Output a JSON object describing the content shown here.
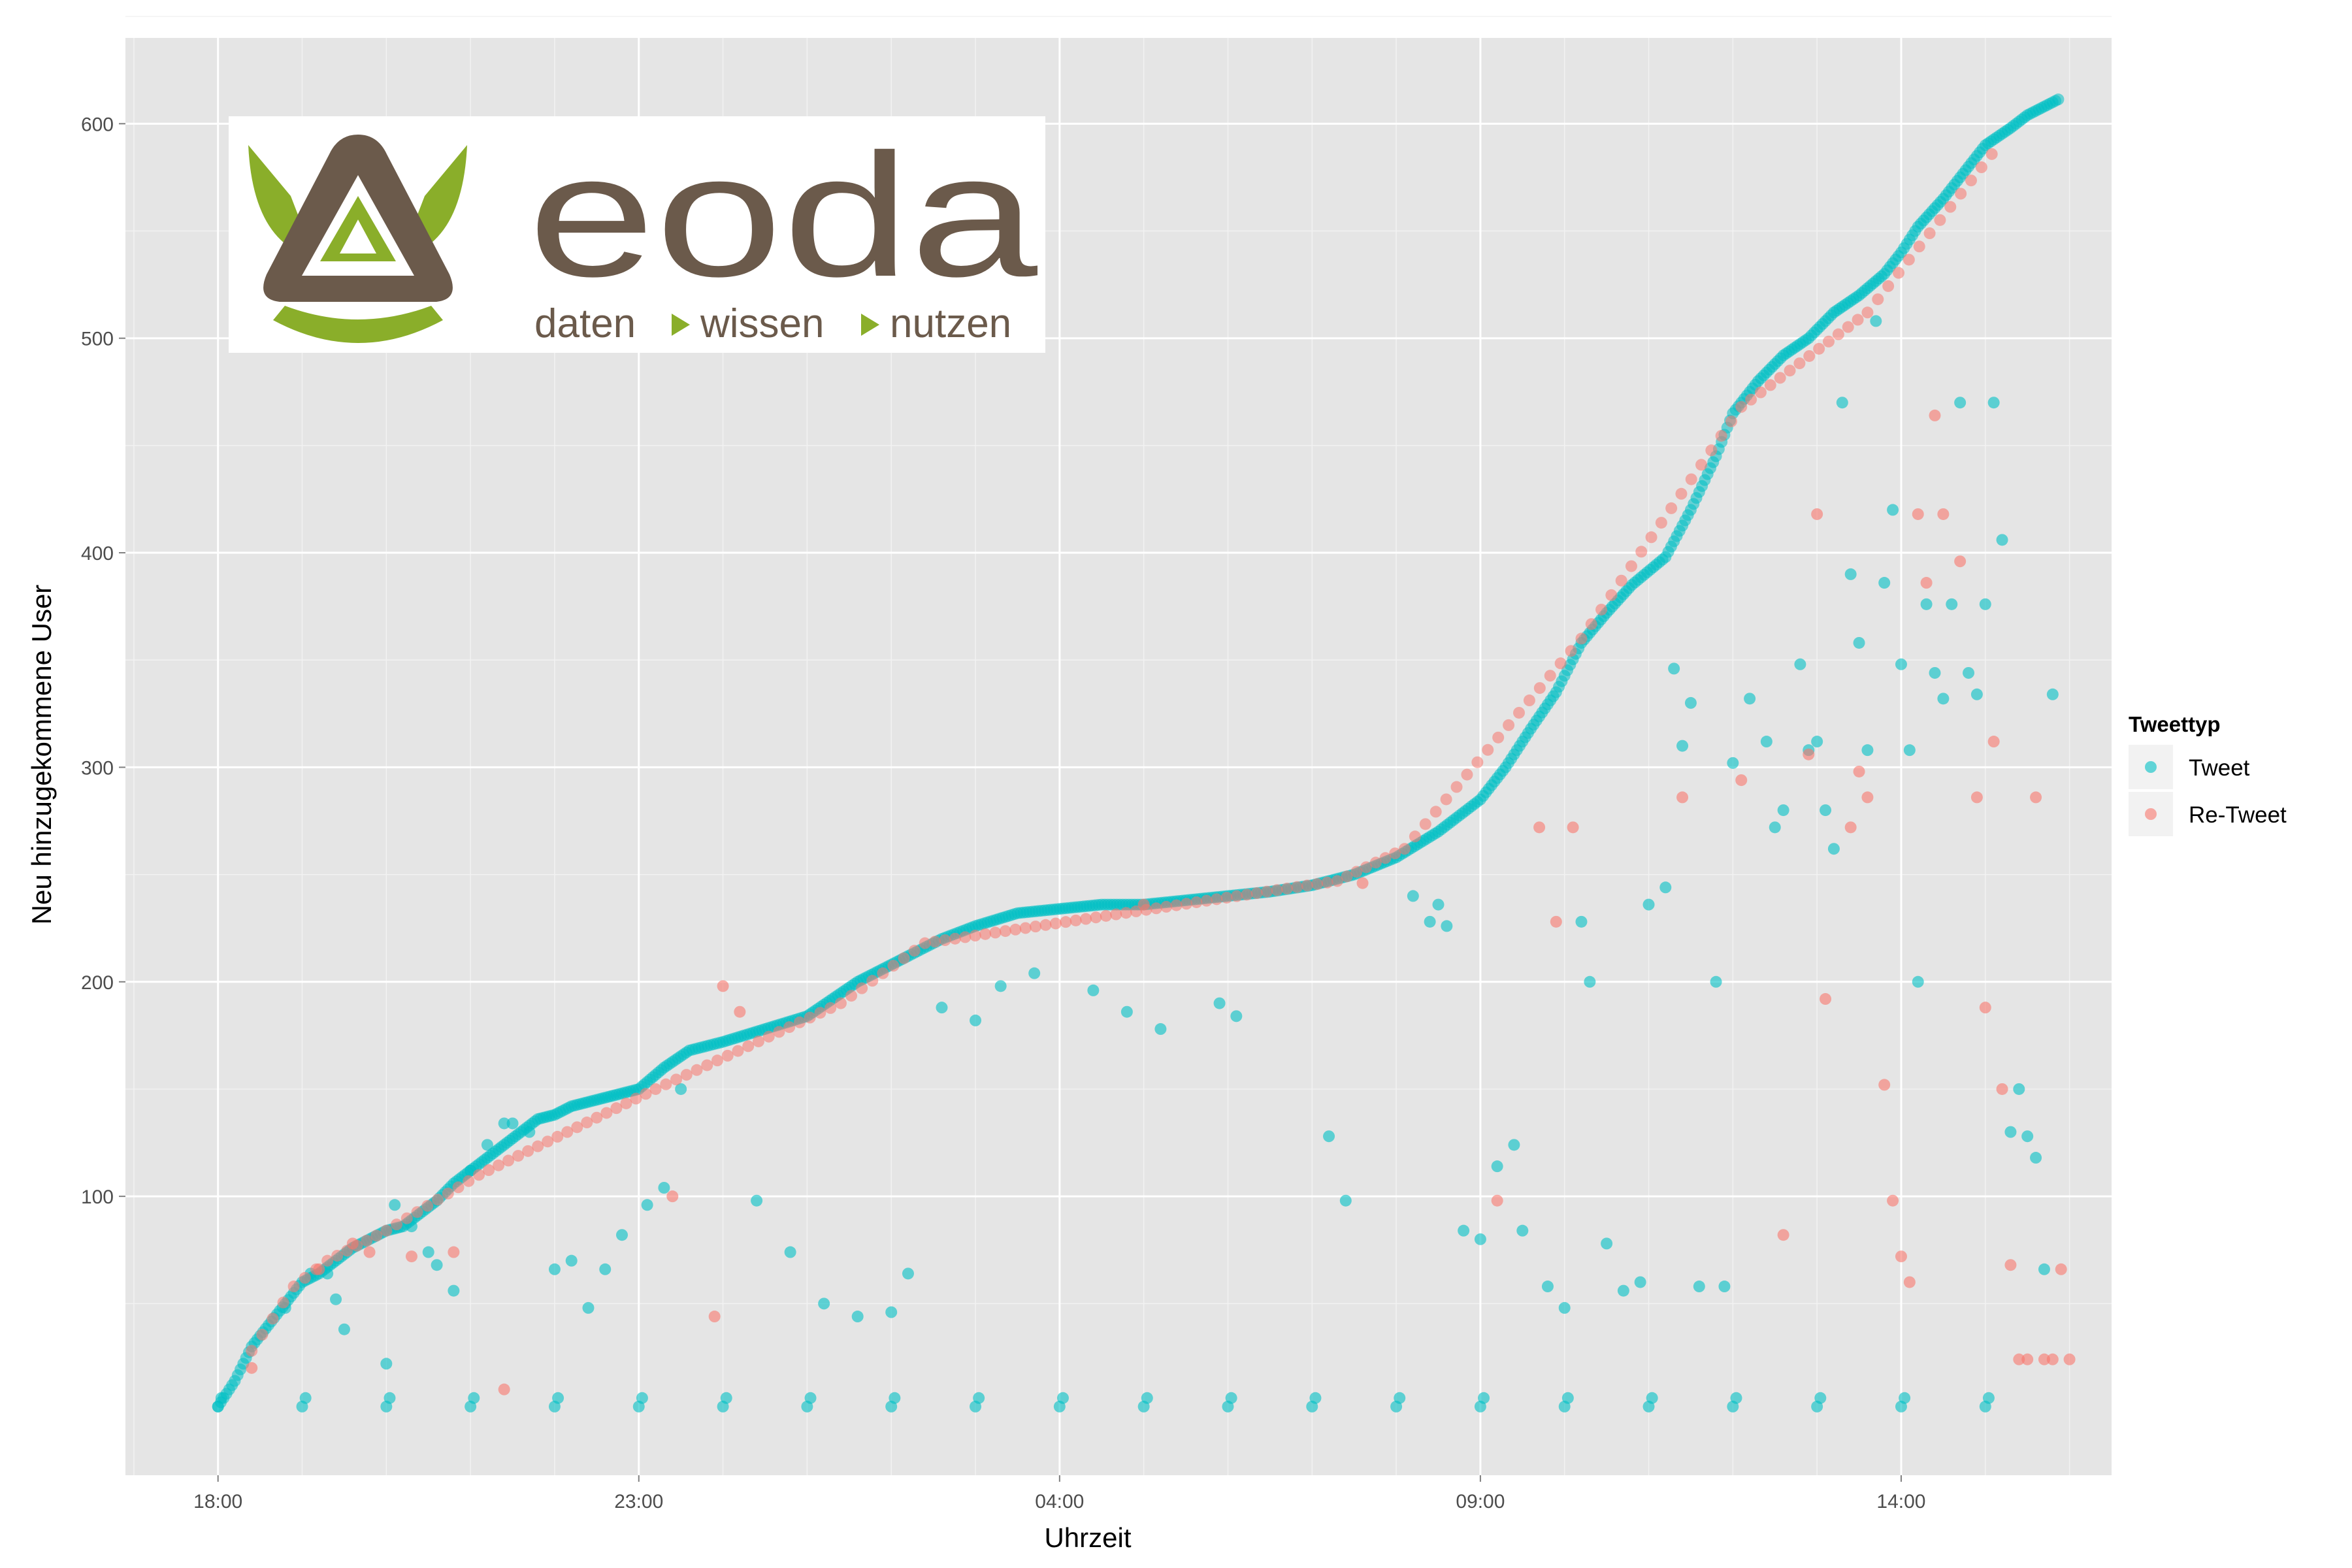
{
  "logo": {
    "name": "eoda",
    "tagline_words": [
      "daten",
      "wissen",
      "nutzen"
    ],
    "colors": {
      "brown": "#6b5a4b",
      "green": "#8aae2a"
    }
  },
  "chart_data": {
    "type": "scatter",
    "xlabel": "Uhrzeit",
    "ylabel": "Neu hinzugekommene User",
    "x_unit": "hours since 18:00",
    "xlim": [
      -1.1,
      22.5
    ],
    "ylim": [
      -30,
      640
    ],
    "x_ticks": [
      {
        "value": 0,
        "label": "18:00"
      },
      {
        "value": 5,
        "label": "23:00"
      },
      {
        "value": 10,
        "label": "04:00"
      },
      {
        "value": 15,
        "label": "09:00"
      },
      {
        "value": 20,
        "label": "14:00"
      }
    ],
    "y_ticks": [
      100,
      200,
      300,
      400,
      500,
      600
    ],
    "grid": true,
    "legend": {
      "title": "Tweettyp",
      "position": "right"
    },
    "colors": {
      "Tweet": "#00BFC4",
      "Re-Tweet": "#F8766D"
    },
    "background": "#e5e5e5",
    "series": [
      {
        "name": "Tweet",
        "curve": [
          [
            0.0,
            2
          ],
          [
            0.2,
            14
          ],
          [
            0.4,
            30
          ],
          [
            0.6,
            40
          ],
          [
            0.8,
            50
          ],
          [
            1.0,
            60
          ],
          [
            1.2,
            64
          ],
          [
            1.4,
            70
          ],
          [
            1.6,
            76
          ],
          [
            1.8,
            80
          ],
          [
            2.0,
            84
          ],
          [
            2.2,
            86
          ],
          [
            2.4,
            92
          ],
          [
            2.6,
            98
          ],
          [
            2.8,
            106
          ],
          [
            3.0,
            112
          ],
          [
            3.2,
            118
          ],
          [
            3.4,
            124
          ],
          [
            3.6,
            130
          ],
          [
            3.8,
            136
          ],
          [
            4.0,
            138
          ],
          [
            4.2,
            142
          ],
          [
            4.5,
            145
          ],
          [
            4.8,
            148
          ],
          [
            5.0,
            150
          ],
          [
            5.3,
            160
          ],
          [
            5.6,
            168
          ],
          [
            6.0,
            172
          ],
          [
            6.5,
            178
          ],
          [
            7.0,
            184
          ],
          [
            7.3,
            192
          ],
          [
            7.6,
            200
          ],
          [
            7.9,
            206
          ],
          [
            8.2,
            212
          ],
          [
            8.6,
            220
          ],
          [
            9.0,
            226
          ],
          [
            9.5,
            232
          ],
          [
            10.0,
            234
          ],
          [
            10.5,
            236
          ],
          [
            11.0,
            236
          ],
          [
            11.5,
            238
          ],
          [
            12.0,
            240
          ],
          [
            12.5,
            242
          ],
          [
            13.0,
            245
          ],
          [
            13.5,
            250
          ],
          [
            14.0,
            258
          ],
          [
            14.5,
            270
          ],
          [
            15.0,
            285
          ],
          [
            15.3,
            300
          ],
          [
            15.6,
            318
          ],
          [
            15.9,
            335
          ],
          [
            16.2,
            358
          ],
          [
            16.5,
            372
          ],
          [
            16.8,
            385
          ],
          [
            17.2,
            398
          ],
          [
            17.5,
            420
          ],
          [
            17.8,
            445
          ],
          [
            18.0,
            465
          ],
          [
            18.3,
            480
          ],
          [
            18.6,
            492
          ],
          [
            18.9,
            500
          ],
          [
            19.2,
            512
          ],
          [
            19.5,
            520
          ],
          [
            19.8,
            530
          ],
          [
            20.0,
            540
          ],
          [
            20.2,
            552
          ],
          [
            20.5,
            565
          ],
          [
            20.8,
            580
          ],
          [
            21.0,
            590
          ],
          [
            21.3,
            598
          ],
          [
            21.5,
            604
          ],
          [
            21.7,
            608
          ],
          [
            21.9,
            612
          ]
        ],
        "points": [
          [
            0.8,
            48
          ],
          [
            1.1,
            64
          ],
          [
            1.3,
            64
          ],
          [
            1.4,
            52
          ],
          [
            1.5,
            38
          ],
          [
            2.0,
            22
          ],
          [
            2.1,
            96
          ],
          [
            2.3,
            86
          ],
          [
            2.5,
            74
          ],
          [
            2.6,
            68
          ],
          [
            2.8,
            56
          ],
          [
            3.0,
            112
          ],
          [
            3.2,
            124
          ],
          [
            3.4,
            134
          ],
          [
            3.5,
            134
          ],
          [
            3.7,
            130
          ],
          [
            4.0,
            66
          ],
          [
            4.2,
            70
          ],
          [
            4.4,
            48
          ],
          [
            4.6,
            66
          ],
          [
            4.8,
            82
          ],
          [
            5.1,
            96
          ],
          [
            5.3,
            104
          ],
          [
            5.5,
            150
          ],
          [
            6.4,
            98
          ],
          [
            6.8,
            74
          ],
          [
            7.2,
            50
          ],
          [
            7.6,
            44
          ],
          [
            8.0,
            46
          ],
          [
            8.2,
            64
          ],
          [
            8.6,
            188
          ],
          [
            9.0,
            182
          ],
          [
            9.3,
            198
          ],
          [
            9.7,
            204
          ],
          [
            10.4,
            196
          ],
          [
            10.8,
            186
          ],
          [
            11.2,
            178
          ],
          [
            11.9,
            190
          ],
          [
            12.1,
            184
          ],
          [
            13.2,
            128
          ],
          [
            13.4,
            98
          ],
          [
            14.2,
            240
          ],
          [
            14.4,
            228
          ],
          [
            14.5,
            236
          ],
          [
            14.6,
            226
          ],
          [
            14.8,
            84
          ],
          [
            15.0,
            80
          ],
          [
            15.2,
            114
          ],
          [
            15.4,
            124
          ],
          [
            15.5,
            84
          ],
          [
            15.8,
            58
          ],
          [
            16.0,
            48
          ],
          [
            16.2,
            228
          ],
          [
            16.3,
            200
          ],
          [
            16.5,
            78
          ],
          [
            16.7,
            56
          ],
          [
            16.9,
            60
          ],
          [
            17.0,
            236
          ],
          [
            17.2,
            244
          ],
          [
            17.3,
            346
          ],
          [
            17.4,
            310
          ],
          [
            17.5,
            330
          ],
          [
            17.6,
            58
          ],
          [
            17.8,
            200
          ],
          [
            17.9,
            58
          ],
          [
            18.0,
            302
          ],
          [
            18.2,
            332
          ],
          [
            18.4,
            312
          ],
          [
            18.5,
            272
          ],
          [
            18.6,
            280
          ],
          [
            18.8,
            348
          ],
          [
            18.9,
            308
          ],
          [
            19.0,
            312
          ],
          [
            19.1,
            280
          ],
          [
            19.2,
            262
          ],
          [
            19.3,
            470
          ],
          [
            19.4,
            390
          ],
          [
            19.5,
            358
          ],
          [
            19.6,
            308
          ],
          [
            19.7,
            508
          ],
          [
            19.8,
            386
          ],
          [
            19.9,
            420
          ],
          [
            20.0,
            348
          ],
          [
            20.1,
            308
          ],
          [
            20.2,
            200
          ],
          [
            20.3,
            376
          ],
          [
            20.4,
            344
          ],
          [
            20.5,
            332
          ],
          [
            20.6,
            376
          ],
          [
            20.7,
            470
          ],
          [
            20.8,
            344
          ],
          [
            20.9,
            334
          ],
          [
            21.0,
            376
          ],
          [
            21.1,
            470
          ],
          [
            21.2,
            406
          ],
          [
            21.3,
            130
          ],
          [
            21.4,
            150
          ],
          [
            21.5,
            128
          ],
          [
            21.6,
            118
          ],
          [
            21.7,
            66
          ],
          [
            21.8,
            334
          ]
        ]
      },
      {
        "name": "Re-Tweet",
        "curve": [
          [
            0.4,
            28
          ],
          [
            0.9,
            58
          ],
          [
            1.3,
            70
          ],
          [
            2.0,
            84
          ],
          [
            3.1,
            110
          ],
          [
            5.2,
            150
          ],
          [
            7.4,
            190
          ],
          [
            8.4,
            218
          ],
          [
            13.3,
            247
          ],
          [
            14.1,
            262
          ],
          [
            16.2,
            360
          ],
          [
            18.1,
            468
          ],
          [
            19.6,
            512
          ],
          [
            21.2,
            592
          ]
        ],
        "points": [
          [
            0.4,
            20
          ],
          [
            1.2,
            66
          ],
          [
            1.6,
            78
          ],
          [
            1.8,
            74
          ],
          [
            2.3,
            72
          ],
          [
            2.8,
            74
          ],
          [
            3.4,
            10
          ],
          [
            5.4,
            100
          ],
          [
            5.9,
            44
          ],
          [
            6.0,
            198
          ],
          [
            6.2,
            186
          ],
          [
            11.0,
            236
          ],
          [
            13.6,
            246
          ],
          [
            15.2,
            98
          ],
          [
            15.7,
            272
          ],
          [
            15.9,
            228
          ],
          [
            16.1,
            272
          ],
          [
            17.4,
            286
          ],
          [
            18.1,
            294
          ],
          [
            18.6,
            82
          ],
          [
            18.9,
            306
          ],
          [
            19.0,
            418
          ],
          [
            19.1,
            192
          ],
          [
            19.4,
            272
          ],
          [
            19.5,
            298
          ],
          [
            19.6,
            286
          ],
          [
            19.8,
            152
          ],
          [
            19.9,
            98
          ],
          [
            20.0,
            72
          ],
          [
            20.1,
            60
          ],
          [
            20.2,
            418
          ],
          [
            20.3,
            386
          ],
          [
            20.4,
            464
          ],
          [
            20.5,
            418
          ],
          [
            20.7,
            396
          ],
          [
            20.9,
            286
          ],
          [
            21.0,
            188
          ],
          [
            21.1,
            312
          ],
          [
            21.2,
            150
          ],
          [
            21.3,
            68
          ],
          [
            21.4,
            24
          ],
          [
            21.5,
            24
          ],
          [
            21.6,
            286
          ],
          [
            21.7,
            24
          ],
          [
            21.8,
            24
          ],
          [
            21.9,
            66
          ],
          [
            22.0,
            24
          ]
        ]
      }
    ]
  }
}
